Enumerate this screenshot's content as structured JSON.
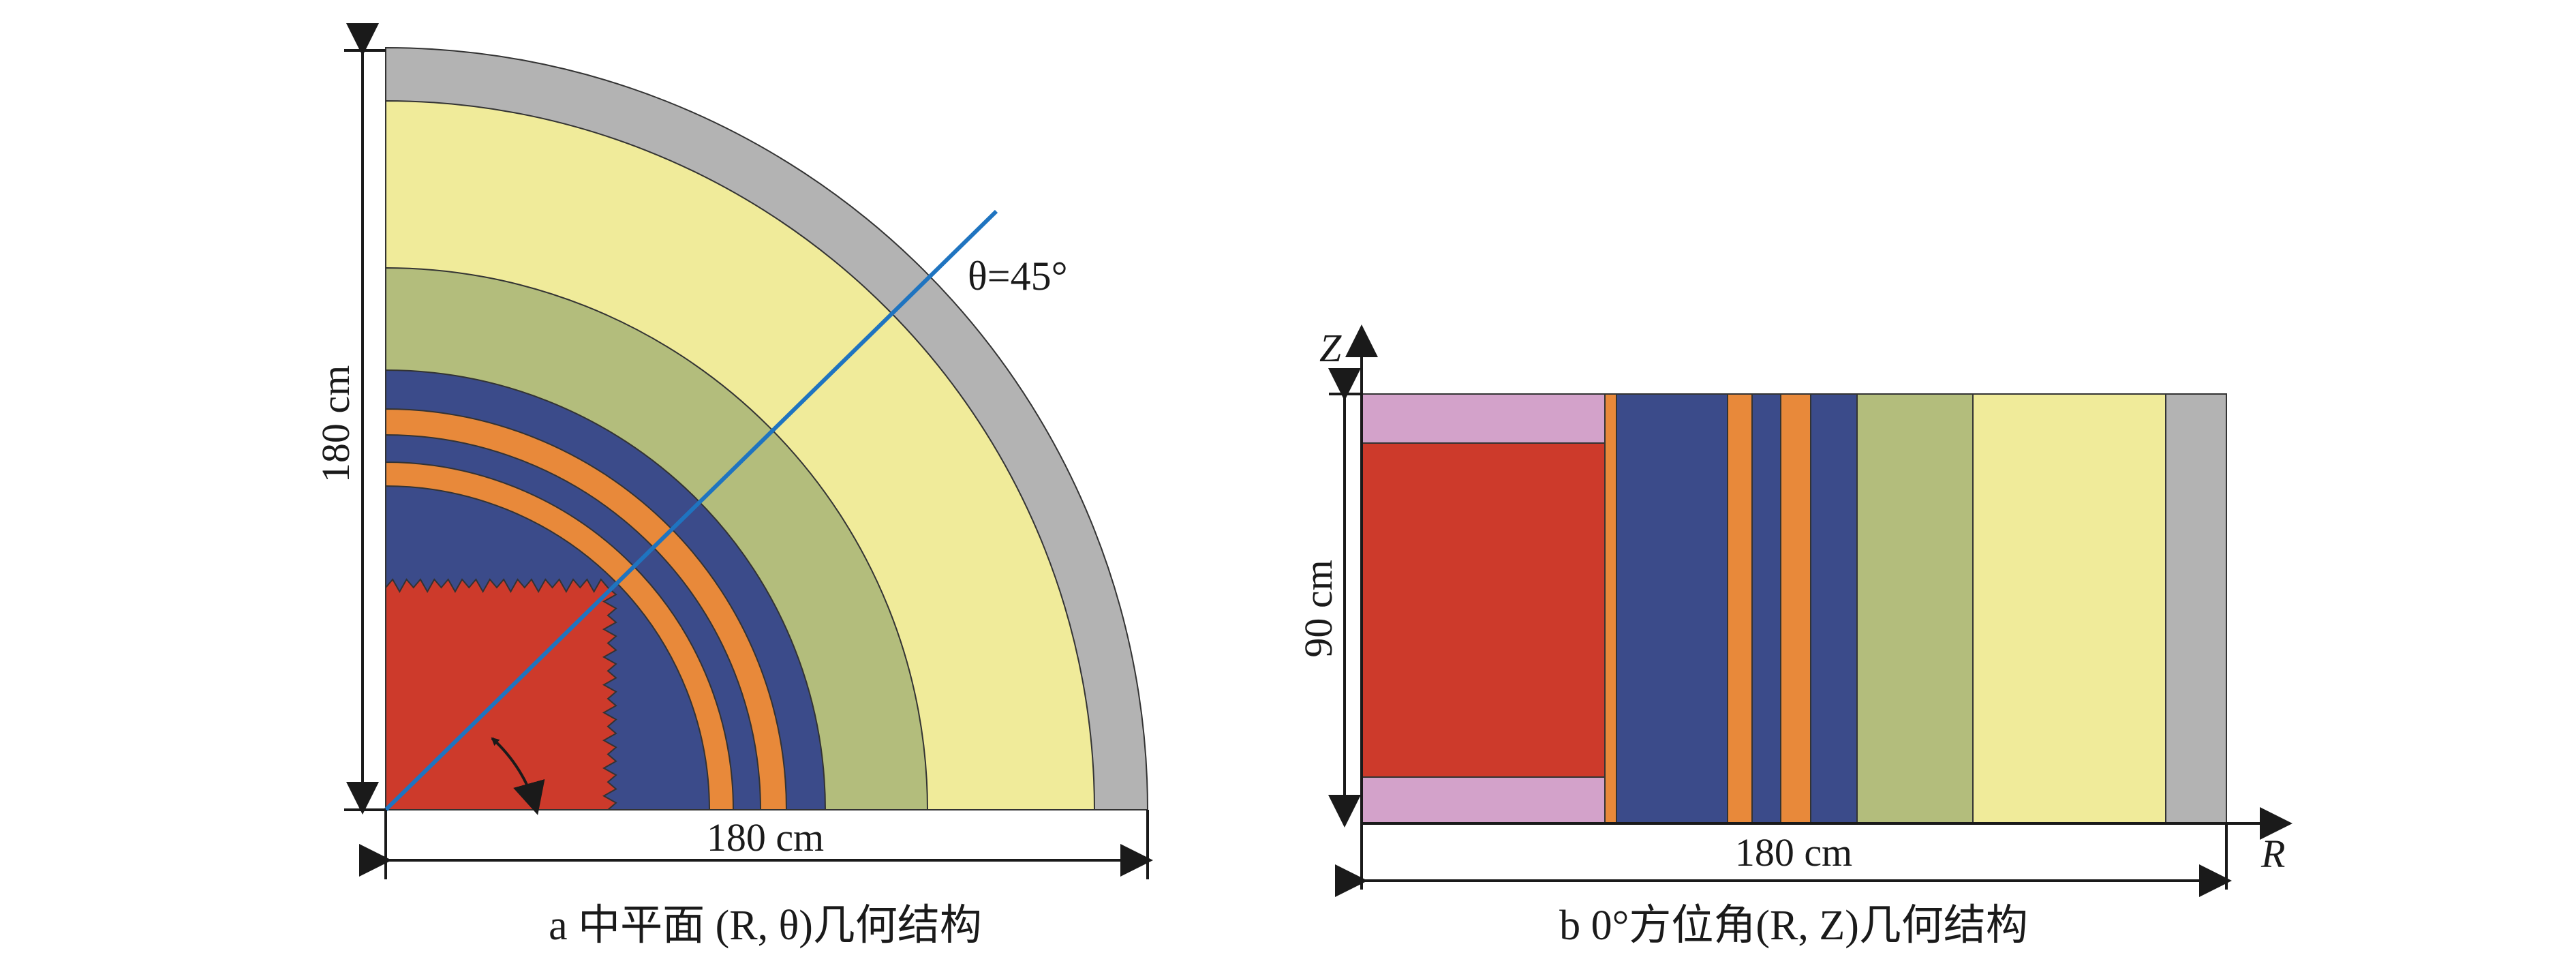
{
  "panel_a": {
    "caption": "a  中平面 (R, θ)几何结构",
    "vertical_dimension": "180 cm",
    "horizontal_dimension": "180 cm",
    "angle_label": "θ=45°"
  },
  "panel_b": {
    "caption": "b  0°方位角(R, Z)几何结构",
    "z_axis_label": "Z",
    "r_axis_label": "R",
    "vertical_dimension": "90 cm",
    "horizontal_dimension": "180 cm"
  },
  "colors": {
    "core_red": "#cd3a2b",
    "blanket_blue": "#3b4b8a",
    "orange": "#e8893a",
    "green": "#b3bd7c",
    "yellow": "#f0eb9a",
    "grey": "#b3b3b3",
    "pink": "#d3a2ca",
    "line_blue": "#1f74c0"
  }
}
